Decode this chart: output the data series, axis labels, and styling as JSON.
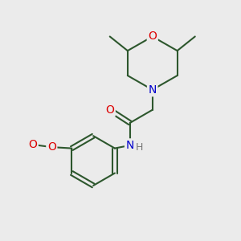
{
  "bg_color": "#ebebeb",
  "bond_color": "#2d572d",
  "bond_width": 1.5,
  "atom_colors": {
    "O": "#dd0000",
    "N": "#0000cc",
    "C": "#2d572d"
  },
  "font_size_atom": 10,
  "fig_width": 3.0,
  "fig_height": 3.0,
  "dpi": 100
}
